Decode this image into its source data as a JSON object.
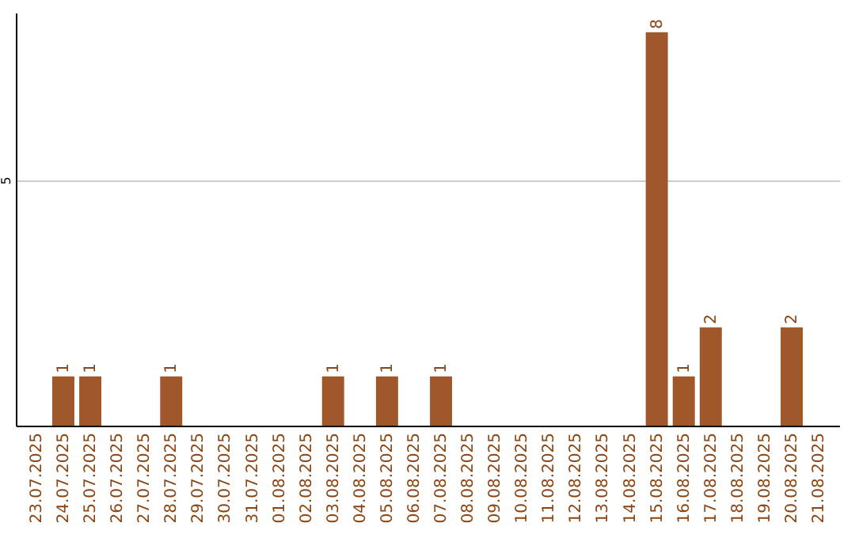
{
  "chart_data": {
    "type": "bar",
    "categories": [
      "23.07.2025",
      "24.07.2025",
      "25.07.2025",
      "26.07.2025",
      "27.07.2025",
      "28.07.2025",
      "29.07.2025",
      "30.07.2025",
      "31.07.2025",
      "01.08.2025",
      "02.08.2025",
      "03.08.2025",
      "04.08.2025",
      "05.08.2025",
      "06.08.2025",
      "07.08.2025",
      "08.08.2025",
      "09.08.2025",
      "10.08.2025",
      "11.08.2025",
      "12.08.2025",
      "13.08.2025",
      "14.08.2025",
      "15.08.2025",
      "16.08.2025",
      "17.08.2025",
      "18.08.2025",
      "19.08.2025",
      "20.08.2025",
      "21.08.2025"
    ],
    "values": [
      0,
      1,
      1,
      0,
      0,
      1,
      0,
      0,
      0,
      0,
      0,
      1,
      0,
      1,
      0,
      1,
      0,
      0,
      0,
      0,
      0,
      0,
      0,
      8,
      1,
      2,
      0,
      0,
      2,
      0
    ],
    "value_labels": [
      null,
      "1",
      "1",
      null,
      null,
      "1",
      null,
      null,
      null,
      null,
      null,
      "1",
      null,
      "1",
      null,
      "1",
      null,
      null,
      null,
      null,
      null,
      null,
      null,
      "8",
      "1",
      "2",
      null,
      null,
      "2",
      null
    ],
    "color": "#a0582a",
    "ylim": [
      0,
      8.4
    ],
    "yticks": [
      5
    ],
    "grid": "y"
  }
}
